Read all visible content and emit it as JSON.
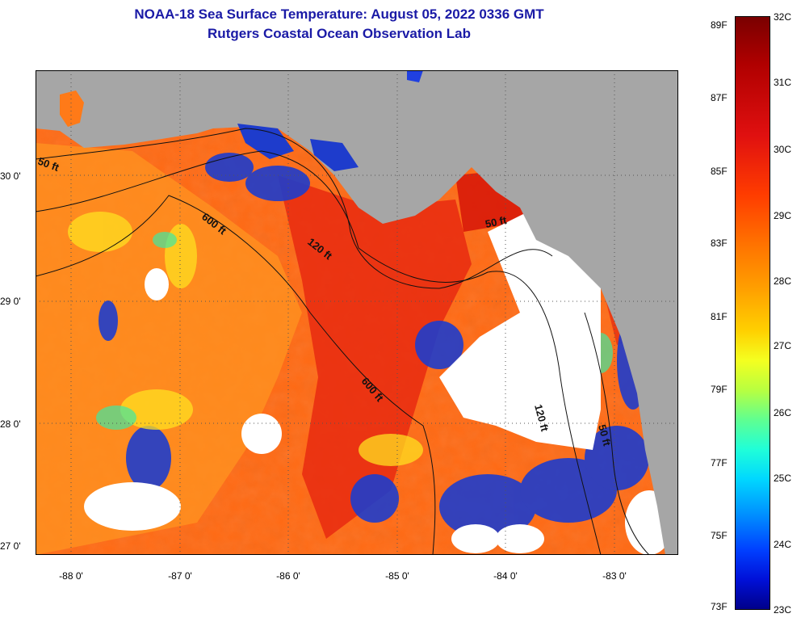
{
  "header": {
    "title_line1": "NOAA-18 Sea Surface Temperature:  August 05, 2022 0336 GMT",
    "title_line2": "Rutgers Coastal Ocean Observation Lab"
  },
  "map": {
    "lat_labels": [
      "30 0'",
      "29 0'",
      "28 0'",
      "27 0'"
    ],
    "lon_labels": [
      "-88 0'",
      "-87 0'",
      "-86 0'",
      "-85 0'",
      "-84 0'",
      "-83 0'"
    ],
    "contours": [
      "50 ft",
      "600 ft",
      "120 ft",
      "50 ft",
      "600 ft",
      "120 ft",
      "50 ft"
    ],
    "colors": {
      "land": "#a6a6a6",
      "ocean_warm": "#ff5a10",
      "ocean_hot": "#e8200c",
      "ocean_cool": "#ffb020",
      "cold_blue": "#1030d0",
      "cloud": "#ffffff"
    }
  },
  "colorbar": {
    "fahrenheit": [
      "89F",
      "87F",
      "85F",
      "83F",
      "81F",
      "79F",
      "77F",
      "75F",
      "73F"
    ],
    "celsius": [
      "32C",
      "31C",
      "30C",
      "29C",
      "28C",
      "27C",
      "26C",
      "25C",
      "24C",
      "23C"
    ]
  }
}
